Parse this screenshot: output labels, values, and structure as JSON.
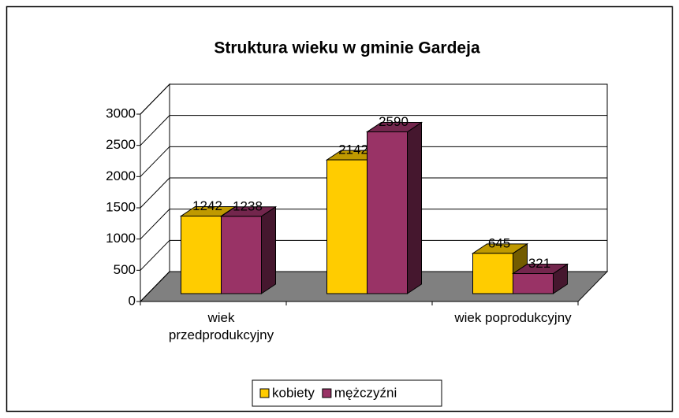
{
  "chart_data": {
    "type": "bar3d",
    "title": "Struktura wieku w gminie Gardeja",
    "categories": [
      "wiek przedprodukcyjny",
      null,
      "wiek poprodukcyjny"
    ],
    "series": [
      {
        "name": "kobiety",
        "color": "#ffcc00",
        "values": [
          1242,
          2142,
          645
        ]
      },
      {
        "name": "mężczyźni",
        "color": "#993366",
        "values": [
          1238,
          2590,
          321
        ]
      }
    ],
    "ylim": [
      0,
      3000
    ],
    "yticks": [
      0,
      500,
      1000,
      1500,
      2000,
      2500,
      3000
    ],
    "grid": true,
    "legend": "bottom"
  }
}
